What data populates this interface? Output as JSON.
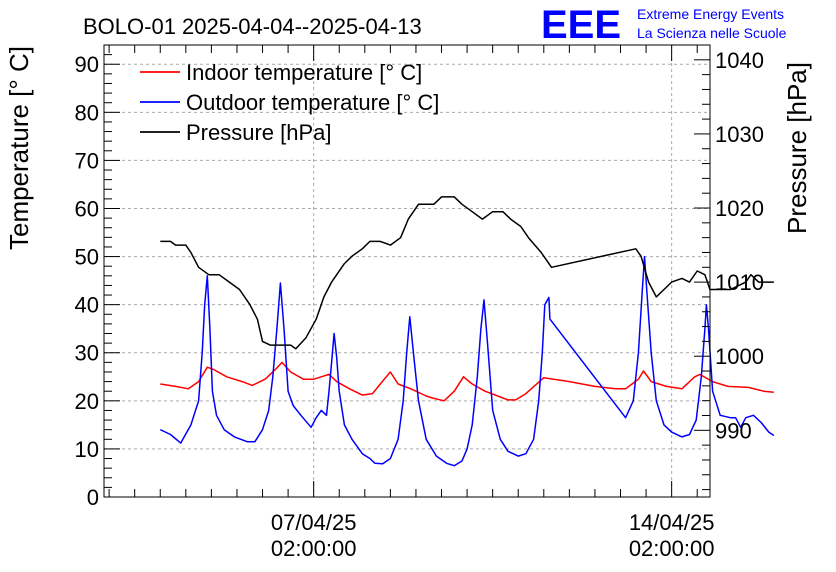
{
  "chart_data": {
    "type": "line",
    "title": "BOLO-01 2025-04-04--2025-04-13",
    "logo": {
      "text": "EEE",
      "line1": "Extreme Energy Events",
      "line2": "La Scienza nelle Scuole",
      "color": "#0000ff"
    },
    "x_axis": {
      "type": "time",
      "labels": [
        {
          "date": "07/04/25",
          "time": "02:00:00",
          "day": 3.0
        },
        {
          "date": "14/04/25",
          "time": "02:00:00",
          "day": 10.0
        }
      ],
      "range_days": [
        -1.1,
        10.75
      ]
    },
    "y_left": {
      "label": "Temperature [° C]",
      "range": [
        0,
        94
      ],
      "ticks": [
        0,
        10,
        20,
        30,
        40,
        50,
        60,
        70,
        80,
        90
      ]
    },
    "y_right": {
      "label": "Pressure [hPa]",
      "range": [
        981,
        1042
      ],
      "ticks": [
        990,
        1000,
        1010,
        1020,
        1030,
        1040
      ]
    },
    "grid": true,
    "legend": "top-left",
    "series": [
      {
        "name": "Indoor temperature [° C]",
        "color": "#ff0000",
        "axis": "left",
        "points": [
          [
            0.0,
            23.5
          ],
          [
            0.3,
            23.0
          ],
          [
            0.55,
            22.5
          ],
          [
            0.75,
            24.0
          ],
          [
            0.92,
            27.0
          ],
          [
            1.05,
            26.5
          ],
          [
            1.3,
            25.0
          ],
          [
            1.6,
            24.0
          ],
          [
            1.8,
            23.2
          ],
          [
            2.05,
            24.5
          ],
          [
            2.25,
            26.5
          ],
          [
            2.38,
            28.0
          ],
          [
            2.55,
            26.0
          ],
          [
            2.8,
            24.5
          ],
          [
            3.0,
            24.5
          ],
          [
            3.15,
            25.0
          ],
          [
            3.3,
            25.5
          ],
          [
            3.45,
            24.0
          ],
          [
            3.7,
            22.5
          ],
          [
            3.95,
            21.2
          ],
          [
            4.15,
            21.5
          ],
          [
            4.38,
            24.5
          ],
          [
            4.5,
            26.0
          ],
          [
            4.65,
            23.5
          ],
          [
            4.9,
            22.5
          ],
          [
            5.2,
            21.0
          ],
          [
            5.35,
            20.5
          ],
          [
            5.55,
            20.0
          ],
          [
            5.75,
            22.0
          ],
          [
            5.93,
            25.0
          ],
          [
            6.1,
            23.5
          ],
          [
            6.35,
            22.0
          ],
          [
            6.6,
            21.0
          ],
          [
            6.8,
            20.2
          ],
          [
            6.95,
            20.2
          ],
          [
            7.15,
            21.5
          ],
          [
            7.5,
            24.8
          ],
          [
            8.0,
            24.0
          ],
          [
            8.5,
            23.0
          ],
          [
            8.9,
            22.5
          ],
          [
            9.1,
            22.5
          ],
          [
            9.35,
            24.5
          ],
          [
            9.45,
            26.2
          ],
          [
            9.6,
            24.0
          ],
          [
            9.9,
            23.0
          ],
          [
            10.2,
            22.5
          ],
          [
            10.45,
            25.0
          ],
          [
            10.55,
            25.5
          ],
          [
            10.8,
            24.0
          ],
          [
            11.1,
            23.0
          ],
          [
            11.5,
            22.8
          ],
          [
            11.8,
            22.0
          ],
          [
            12.0,
            21.8
          ]
        ]
      },
      {
        "name": "Outdoor temperature [° C]",
        "color": "#0000ff",
        "axis": "left",
        "points": [
          [
            0.0,
            14.0
          ],
          [
            0.2,
            13.0
          ],
          [
            0.4,
            11.2
          ],
          [
            0.6,
            15.0
          ],
          [
            0.75,
            20.0
          ],
          [
            0.82,
            30.0
          ],
          [
            0.87,
            40.0
          ],
          [
            0.92,
            46.0
          ],
          [
            0.97,
            35.0
          ],
          [
            1.02,
            22.0
          ],
          [
            1.1,
            17.0
          ],
          [
            1.25,
            14.0
          ],
          [
            1.45,
            12.5
          ],
          [
            1.7,
            11.5
          ],
          [
            1.85,
            11.5
          ],
          [
            2.0,
            14.0
          ],
          [
            2.12,
            18.0
          ],
          [
            2.2,
            25.0
          ],
          [
            2.28,
            35.0
          ],
          [
            2.35,
            44.5
          ],
          [
            2.42,
            35.0
          ],
          [
            2.5,
            22.0
          ],
          [
            2.6,
            19.0
          ],
          [
            2.75,
            17.0
          ],
          [
            2.95,
            14.5
          ],
          [
            3.05,
            16.5
          ],
          [
            3.15,
            18.0
          ],
          [
            3.25,
            17.0
          ],
          [
            3.3,
            22.0
          ],
          [
            3.35,
            28.0
          ],
          [
            3.4,
            34.0
          ],
          [
            3.45,
            29.0
          ],
          [
            3.5,
            22.0
          ],
          [
            3.6,
            15.0
          ],
          [
            3.75,
            12.0
          ],
          [
            3.95,
            9.0
          ],
          [
            4.1,
            8.0
          ],
          [
            4.2,
            7.0
          ],
          [
            4.35,
            6.9
          ],
          [
            4.5,
            8.0
          ],
          [
            4.65,
            12.0
          ],
          [
            4.75,
            20.0
          ],
          [
            4.82,
            30.0
          ],
          [
            4.88,
            37.5
          ],
          [
            4.95,
            30.0
          ],
          [
            5.05,
            20.0
          ],
          [
            5.2,
            12.0
          ],
          [
            5.4,
            8.5
          ],
          [
            5.6,
            7.0
          ],
          [
            5.75,
            6.5
          ],
          [
            5.9,
            7.5
          ],
          [
            6.0,
            10.0
          ],
          [
            6.1,
            15.0
          ],
          [
            6.2,
            25.0
          ],
          [
            6.27,
            35.0
          ],
          [
            6.33,
            41.0
          ],
          [
            6.4,
            32.0
          ],
          [
            6.5,
            18.0
          ],
          [
            6.65,
            12.0
          ],
          [
            6.8,
            9.5
          ],
          [
            7.0,
            8.5
          ],
          [
            7.15,
            9.0
          ],
          [
            7.3,
            12.0
          ],
          [
            7.4,
            20.0
          ],
          [
            7.47,
            30.0
          ],
          [
            7.52,
            40.0
          ],
          [
            7.6,
            41.5
          ],
          [
            7.62,
            37.0
          ],
          [
            9.1,
            16.5
          ],
          [
            9.25,
            20.0
          ],
          [
            9.35,
            30.0
          ],
          [
            9.42,
            42.0
          ],
          [
            9.47,
            50.0
          ],
          [
            9.52,
            42.0
          ],
          [
            9.6,
            30.0
          ],
          [
            9.7,
            20.0
          ],
          [
            9.85,
            15.0
          ],
          [
            10.0,
            13.5
          ],
          [
            10.2,
            12.5
          ],
          [
            10.35,
            13.0
          ],
          [
            10.48,
            16.0
          ],
          [
            10.58,
            25.0
          ],
          [
            10.65,
            35.0
          ],
          [
            10.68,
            40.0
          ],
          [
            10.72,
            35.0
          ],
          [
            10.8,
            22.0
          ],
          [
            10.95,
            17.0
          ],
          [
            11.15,
            16.5
          ],
          [
            11.25,
            16.5
          ],
          [
            11.35,
            14.5
          ],
          [
            11.45,
            16.5
          ],
          [
            11.6,
            17.0
          ],
          [
            11.75,
            15.5
          ],
          [
            11.9,
            13.5
          ],
          [
            12.0,
            12.8
          ]
        ]
      },
      {
        "name": "Pressure [hPa]",
        "color": "#000000",
        "axis": "right",
        "points": [
          [
            0.0,
            1015.5
          ],
          [
            0.2,
            1015.5
          ],
          [
            0.3,
            1015.0
          ],
          [
            0.5,
            1015.0
          ],
          [
            0.6,
            1014.0
          ],
          [
            0.75,
            1012.0
          ],
          [
            0.95,
            1011.0
          ],
          [
            1.15,
            1011.0
          ],
          [
            1.35,
            1010.0
          ],
          [
            1.55,
            1009.0
          ],
          [
            1.75,
            1007.0
          ],
          [
            1.9,
            1005.0
          ],
          [
            2.0,
            1002.0
          ],
          [
            2.15,
            1001.5
          ],
          [
            2.35,
            1001.5
          ],
          [
            2.55,
            1001.5
          ],
          [
            2.65,
            1001.0
          ],
          [
            2.85,
            1002.5
          ],
          [
            3.05,
            1005.0
          ],
          [
            3.2,
            1008.0
          ],
          [
            3.35,
            1010.0
          ],
          [
            3.6,
            1012.5
          ],
          [
            3.75,
            1013.5
          ],
          [
            3.95,
            1014.5
          ],
          [
            4.1,
            1015.5
          ],
          [
            4.3,
            1015.5
          ],
          [
            4.5,
            1015.0
          ],
          [
            4.7,
            1016.0
          ],
          [
            4.85,
            1018.5
          ],
          [
            5.05,
            1020.5
          ],
          [
            5.35,
            1020.5
          ],
          [
            5.5,
            1021.5
          ],
          [
            5.75,
            1021.5
          ],
          [
            5.9,
            1020.5
          ],
          [
            6.1,
            1019.5
          ],
          [
            6.3,
            1018.5
          ],
          [
            6.5,
            1019.5
          ],
          [
            6.7,
            1019.5
          ],
          [
            6.85,
            1018.5
          ],
          [
            7.05,
            1017.5
          ],
          [
            7.2,
            1016.0
          ],
          [
            7.45,
            1014.0
          ],
          [
            7.65,
            1012.0
          ],
          [
            9.3,
            1014.5
          ],
          [
            9.4,
            1013.5
          ],
          [
            9.55,
            1010.0
          ],
          [
            9.7,
            1008.0
          ],
          [
            9.85,
            1009.0
          ],
          [
            10.0,
            1010.0
          ],
          [
            10.2,
            1010.5
          ],
          [
            10.35,
            1010.0
          ],
          [
            10.5,
            1011.5
          ],
          [
            10.65,
            1011.0
          ],
          [
            10.75,
            1009.0
          ],
          [
            10.95,
            1009.0
          ],
          [
            11.15,
            1009.0
          ],
          [
            11.3,
            1009.5
          ],
          [
            11.45,
            1010.0
          ],
          [
            11.55,
            1011.0
          ],
          [
            11.7,
            1010.0
          ],
          [
            11.85,
            1010.0
          ],
          [
            12.0,
            1010.0
          ]
        ]
      }
    ]
  }
}
